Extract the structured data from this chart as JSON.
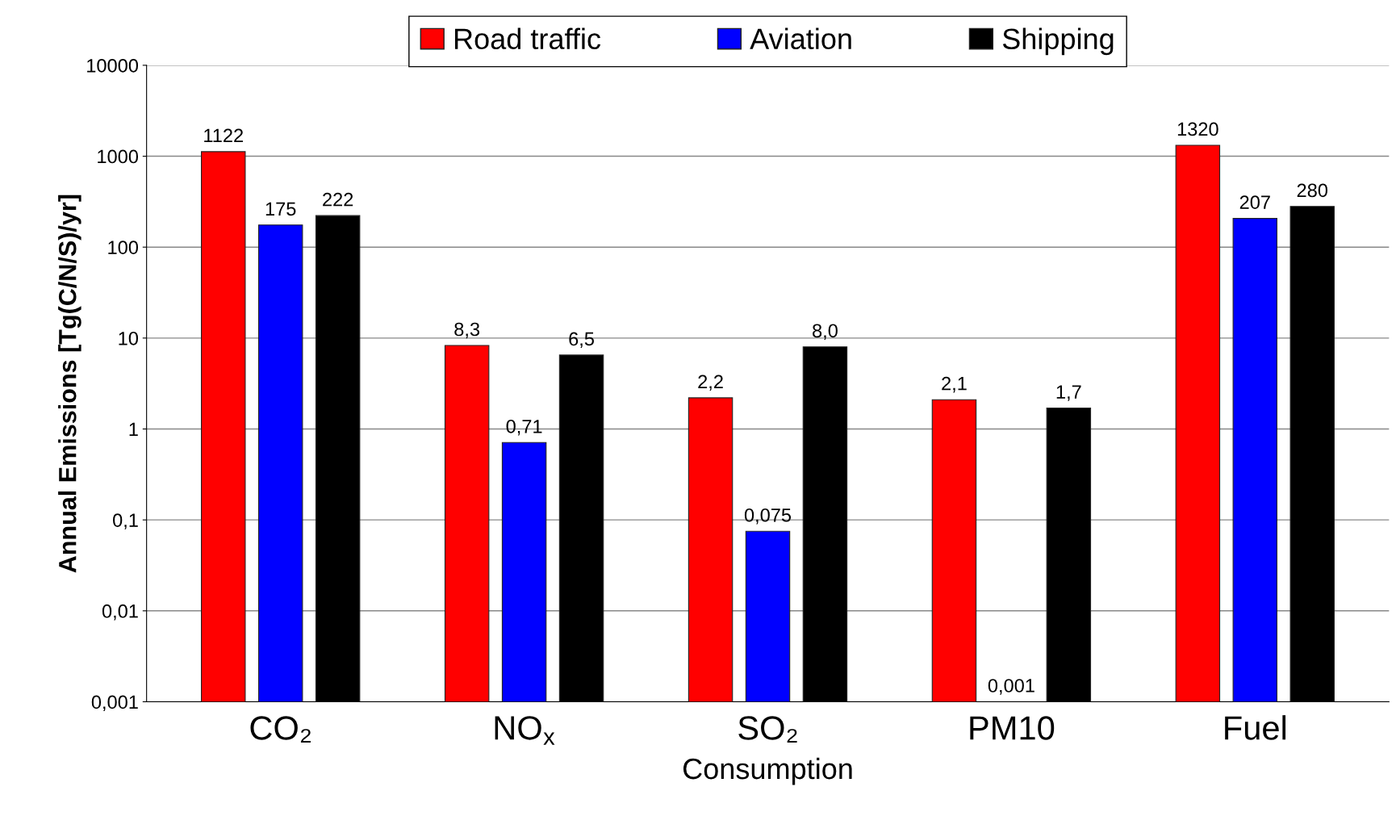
{
  "chart_data": {
    "type": "bar",
    "ylabel": "Annual Emissions [Tg(C/N/S)/yr]",
    "xlabel": "Consumption",
    "categories": [
      "CO₂",
      "NO$_{x}$",
      "SO₂",
      "PM10",
      "Fuel"
    ],
    "series": [
      {
        "name": "Road traffic",
        "color": "#ff0000",
        "values": [
          1122,
          8.3,
          2.2,
          2.1,
          1320
        ],
        "value_labels": [
          "1122",
          "8,3",
          "2,2",
          "2,1",
          "1320"
        ]
      },
      {
        "name": "Aviation",
        "color": "#0000ff",
        "values": [
          175,
          0.71,
          0.075,
          0.001,
          207
        ],
        "value_labels": [
          "175",
          "0,71",
          "0,075",
          "0,001",
          "207"
        ]
      },
      {
        "name": "Shipping",
        "color": "#000000",
        "values": [
          222,
          6.5,
          8.0,
          1.7,
          280
        ],
        "value_labels": [
          "222",
          "6,5",
          "8,0",
          "1,7",
          "280"
        ]
      }
    ],
    "log": true,
    "ylim": [
      0.001,
      10000
    ],
    "yticks": [
      {
        "value": 0.001,
        "label": "0,001"
      },
      {
        "value": 0.01,
        "label": "0,01"
      },
      {
        "value": 0.1,
        "label": "0,1"
      },
      1,
      10,
      100,
      1000,
      10000
    ],
    "grid": "y",
    "legend": "top"
  }
}
